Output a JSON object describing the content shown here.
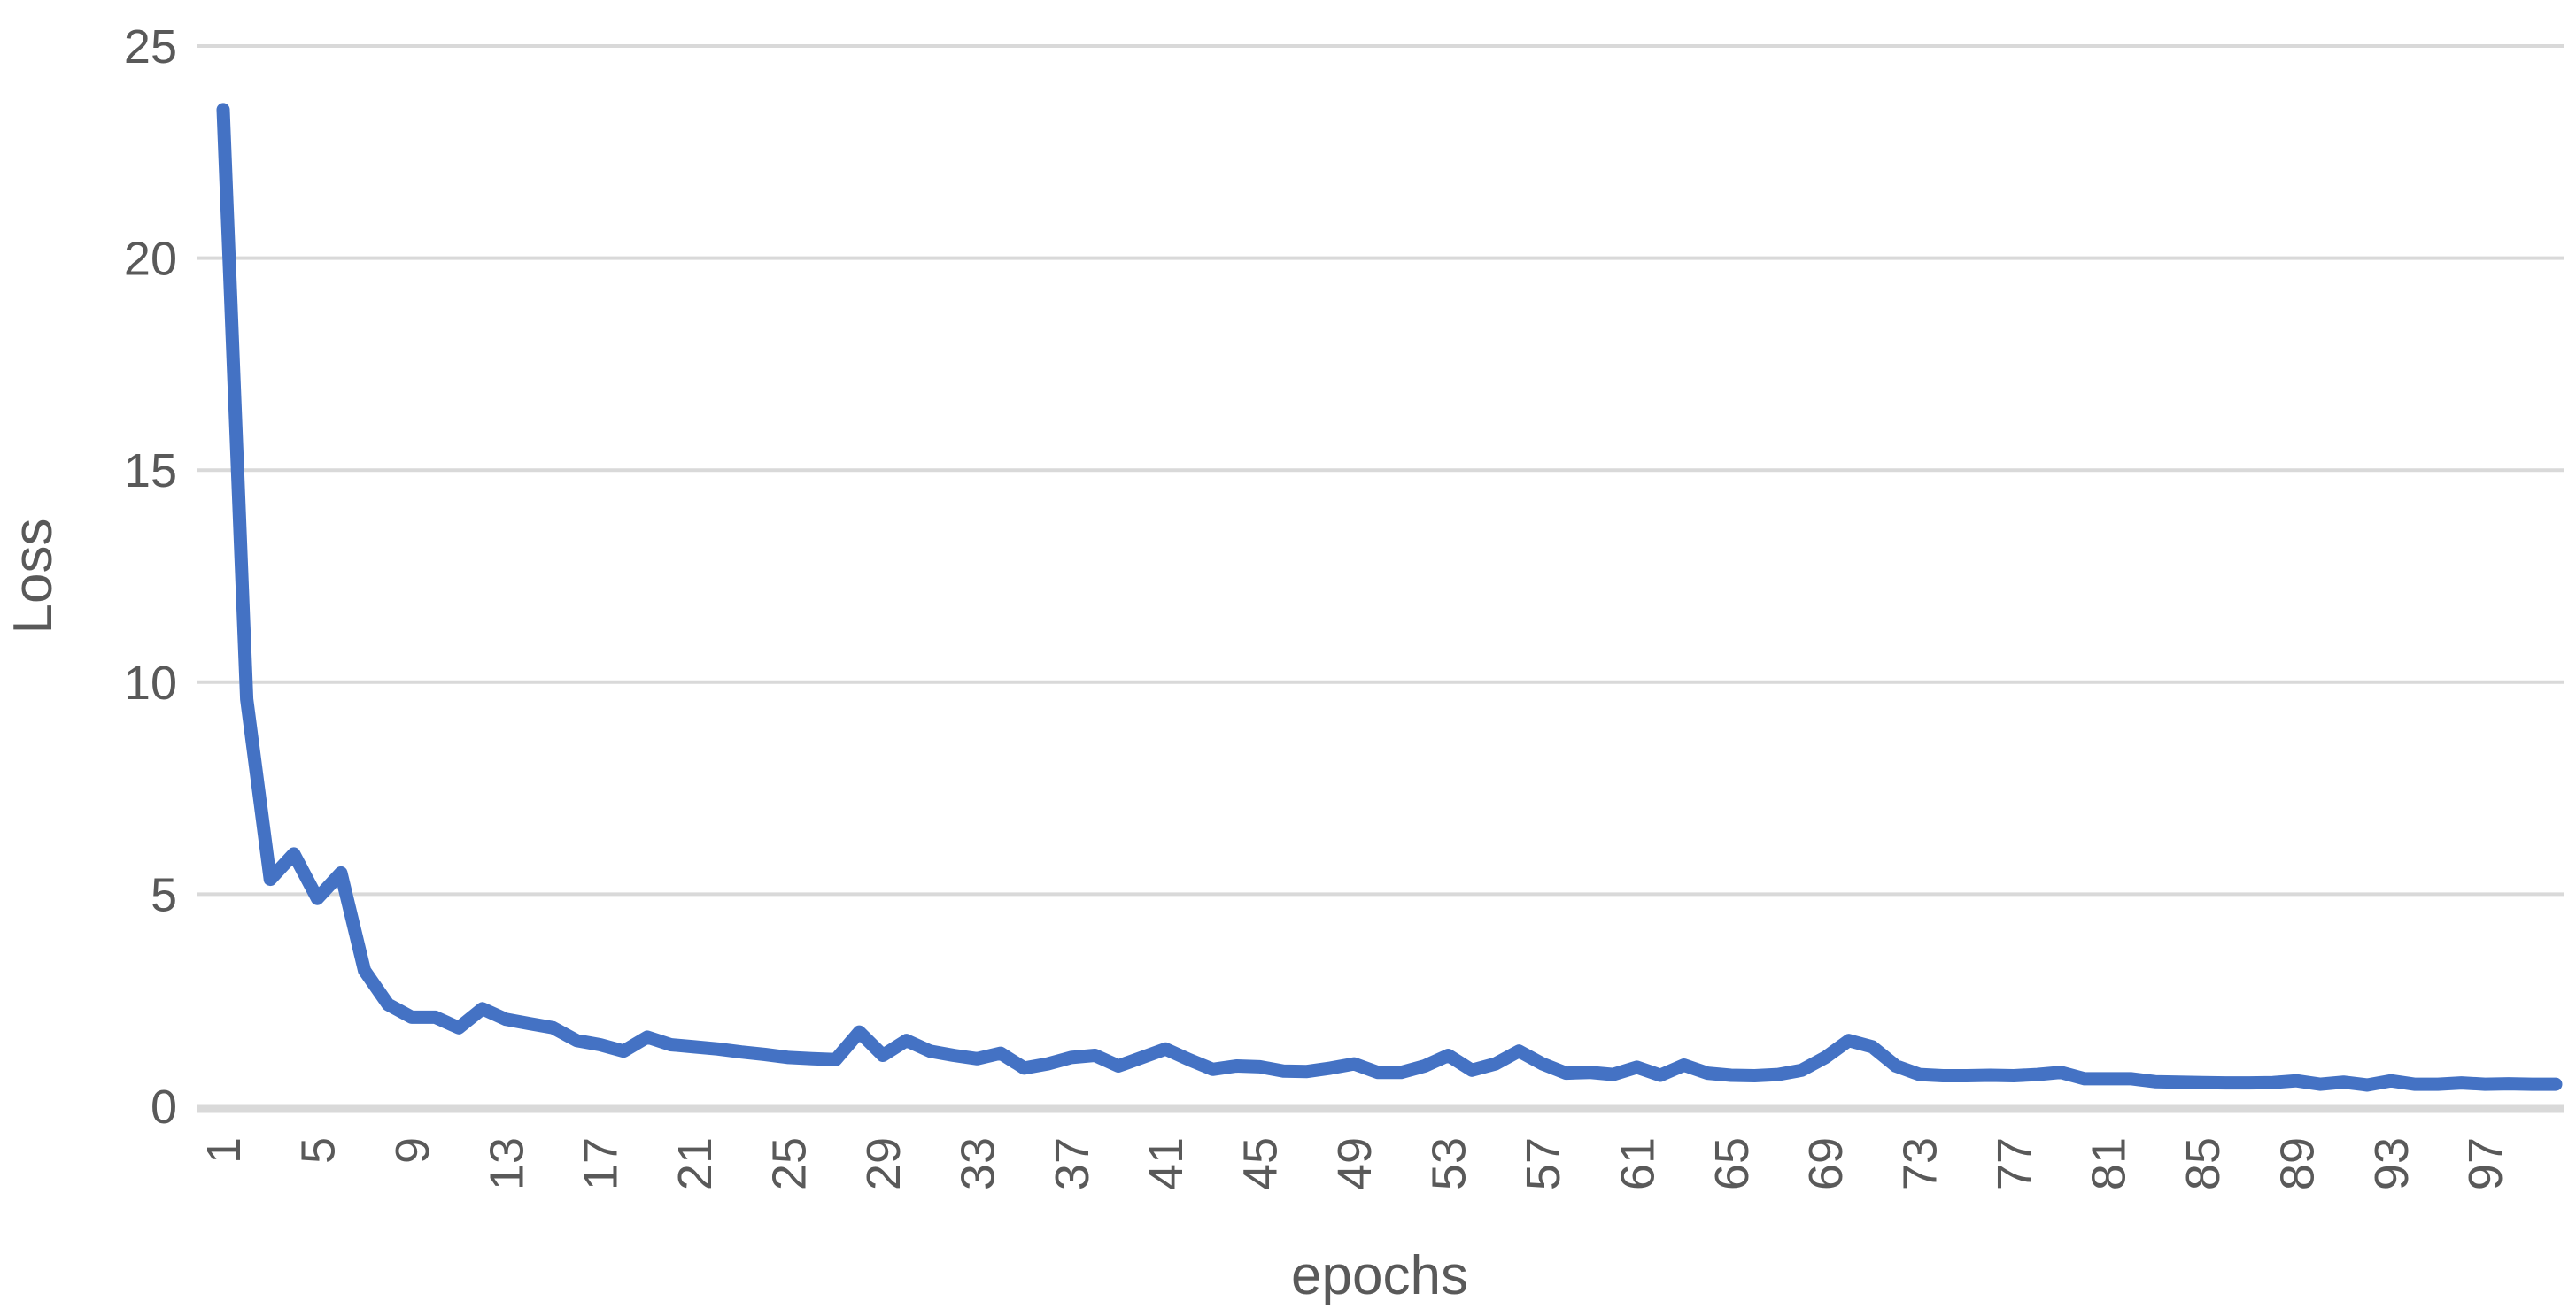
{
  "chart_data": {
    "type": "line",
    "title": "",
    "xlabel": "epochs",
    "ylabel": "Loss",
    "x": [
      1,
      2,
      3,
      4,
      5,
      6,
      7,
      8,
      9,
      10,
      11,
      12,
      13,
      14,
      15,
      16,
      17,
      18,
      19,
      20,
      21,
      22,
      23,
      24,
      25,
      26,
      27,
      28,
      29,
      30,
      31,
      32,
      33,
      34,
      35,
      36,
      37,
      38,
      39,
      40,
      41,
      42,
      43,
      44,
      45,
      46,
      47,
      48,
      49,
      50,
      51,
      52,
      53,
      54,
      55,
      56,
      57,
      58,
      59,
      60,
      61,
      62,
      63,
      64,
      65,
      66,
      67,
      68,
      69,
      70,
      71,
      72,
      73,
      74,
      75,
      76,
      77,
      78,
      79,
      80,
      81,
      82,
      83,
      84,
      85,
      86,
      87,
      88,
      89,
      90,
      91,
      92,
      93,
      94,
      95,
      96,
      97,
      98,
      99,
      100
    ],
    "series": [
      {
        "name": "Loss",
        "values": [
          23.5,
          9.6,
          5.35,
          5.95,
          4.9,
          5.5,
          3.2,
          2.4,
          2.1,
          2.1,
          1.85,
          2.3,
          2.05,
          1.95,
          1.85,
          1.55,
          1.45,
          1.3,
          1.63,
          1.45,
          1.4,
          1.35,
          1.28,
          1.22,
          1.15,
          1.12,
          1.1,
          1.75,
          1.2,
          1.55,
          1.3,
          1.2,
          1.12,
          1.25,
          0.9,
          1.0,
          1.15,
          1.2,
          0.95,
          1.15,
          1.35,
          1.1,
          0.87,
          0.95,
          0.93,
          0.83,
          0.82,
          0.9,
          1.0,
          0.8,
          0.8,
          0.95,
          1.2,
          0.85,
          1.0,
          1.3,
          1.0,
          0.78,
          0.8,
          0.75,
          0.92,
          0.73,
          0.97,
          0.78,
          0.73,
          0.72,
          0.75,
          0.85,
          1.15,
          1.55,
          1.4,
          0.95,
          0.75,
          0.72,
          0.72,
          0.73,
          0.72,
          0.75,
          0.8,
          0.65,
          0.65,
          0.65,
          0.58,
          0.57,
          0.56,
          0.55,
          0.55,
          0.56,
          0.6,
          0.52,
          0.57,
          0.5,
          0.6,
          0.52,
          0.52,
          0.55,
          0.52,
          0.53,
          0.52,
          0.52
        ]
      }
    ],
    "ylim": [
      0,
      25
    ],
    "yticks": [
      0,
      5,
      10,
      15,
      20,
      25
    ],
    "xticks": [
      1,
      5,
      9,
      13,
      17,
      21,
      25,
      29,
      33,
      37,
      41,
      45,
      49,
      53,
      57,
      61,
      65,
      69,
      73,
      77,
      81,
      85,
      89,
      93,
      97
    ],
    "xtick_rotation_degrees": -90,
    "grid": "horizontal",
    "legend": "none",
    "line_color": "#4472C4",
    "gridline_color": "#D9D9D9",
    "axis_line_color": "#D9D9D9",
    "label_color": "#595959",
    "background": "#FFFFFF"
  }
}
